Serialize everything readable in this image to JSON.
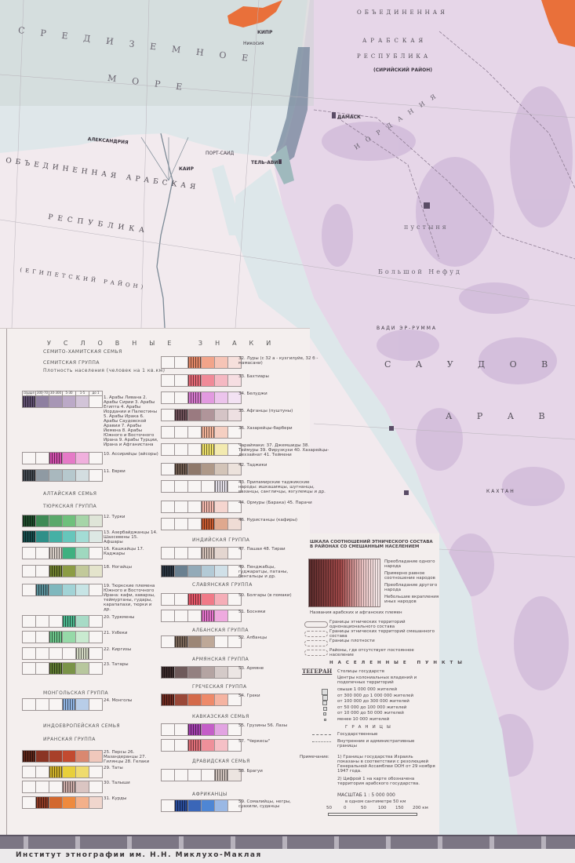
{
  "map": {
    "labels": {
      "sea1": "СРЕДИЗЕМНОЕ",
      "sea2": "МОРЕ",
      "egypt1": "ОБЪЕДИНЕННАЯ АРАБСКАЯ",
      "egypt2": "РЕСПУБЛИКА",
      "egypt3": "(ЕГИПЕТСКИЙ РАЙОН)",
      "syria1": "ОБЪЕДИНЕННАЯ",
      "syria2": "АРАБСКАЯ",
      "syria3": "РЕСПУБЛИКА",
      "syria4": "(СИРИЙСКИЙ РАЙОН)",
      "jordan": "ИОРДАНИЯ",
      "desert1": "пустыня",
      "desert2": "Большой Нефуд",
      "saudi1": "С А У Д О В",
      "saudi2": "А Р А В",
      "alexandria": "АЛЕКСАНДРИЯ",
      "cairo": "КАИР",
      "telaviv": "ТЕЛЬ-АВИВ",
      "damascus": "ДАМАСК",
      "cyprus": "КИПР",
      "nicosia": "Никосия",
      "port_said": "ПОРТ-САИД",
      "qattan": "КАХТАН",
      "nejd": "ВАДИ ЭР-РУММА"
    },
    "colors": {
      "sea": "#dfe7ea",
      "land": "#f2eaee",
      "arabia": "#e6d6e8",
      "arabia_dark": "#cfb8d8",
      "levant": "#6b7f96",
      "kurds": "#e9703a"
    }
  },
  "legend": {
    "title": "УСЛОВНЫЕ ЗНАКИ",
    "density_header": [
      "свыше 700",
      "300-700",
      "30-300",
      "5-30",
      "1-5",
      "до 1"
    ],
    "left": [
      {
        "kind": "heading",
        "text": "СЕМИТО-ХАМИТСКАЯ СЕМЬЯ"
      },
      {
        "kind": "heading",
        "text": "СЕМИТСКАЯ ГРУППА"
      },
      {
        "kind": "heading",
        "text": "Плотность населения (человек на 1 кв.км)"
      },
      {
        "kind": "row",
        "label": "1. Арабы Ливана 2. Арабы Сирии 3. Арабы Египта 4. Арабы Иордании и Палестины 5. Арабы Ирака 6. Арабы Саудовской Аравии 7. Арабы Йемена 8. Арабы Южного и Восточного Ирана 9. Арабы Турции, Ирана и Афганистана",
        "cells": [
          "#5e4e6e",
          "#8e7fa0",
          "#a796b5",
          "#bba9c7",
          "#d2c4d8",
          ""
        ]
      },
      {
        "kind": "row",
        "label": "10. Ассирийцы (айсоры)",
        "cells": [
          "",
          "",
          "#d24fae",
          "#e57ac7",
          "#f0b0dd",
          ""
        ]
      },
      {
        "kind": "row",
        "label": "11. Евреи",
        "cells": [
          "#40464e",
          "#8f9aa3",
          "#a9b8be",
          "#b6c8cd",
          "#d3dde0",
          ""
        ]
      },
      {
        "kind": "heading",
        "text": "АЛТАЙСКАЯ СЕМЬЯ"
      },
      {
        "kind": "heading",
        "text": "ТЮРКСКАЯ ГРУППА"
      },
      {
        "kind": "row",
        "label": "12. Турки",
        "cells": [
          "#1e4a2a",
          "#3e8a55",
          "#5aa86a",
          "#6fc07c",
          "#a6d5a8",
          "#dfe5d8"
        ]
      },
      {
        "kind": "row",
        "label": "13. Азербайджанцы 14. Шахсевены 15. Афшары",
        "cells": [
          "#164a4a",
          "#2f8f88",
          "#45b0a5",
          "#66c6bb",
          "#a3dcd5",
          "#dde8e4"
        ]
      },
      {
        "kind": "row",
        "label": "16. Кашкайцы 17. Каджары",
        "cells": [
          "",
          "",
          "#d9cfc8",
          "#3fb080",
          "#9fd8bf",
          ""
        ]
      },
      {
        "kind": "row",
        "label": "18. Ногайцы",
        "cells": [
          "",
          "",
          "#6f7f2e",
          "#8c9c45",
          "#c2c99a",
          "#e4e4cc"
        ]
      },
      {
        "kind": "row",
        "label": "19. Тюркские племена Южного и Восточного Ирана: кафи, хаварзы, теймуртаны, гудары, карапапахи, тюрки и др.",
        "cells": [
          "",
          "#5a8f98",
          "#7fb7bd",
          "#a2d3d6",
          "#c7e4e5",
          ""
        ]
      },
      {
        "kind": "row",
        "label": "20. Туркмены",
        "cells": [
          "",
          "",
          "",
          "#4bb48c",
          "#a7dbc6",
          ""
        ]
      },
      {
        "kind": "row",
        "label": "21. Узбеки",
        "cells": [
          "",
          "",
          "#6cc58a",
          "#96d9a8",
          "#c9ead0",
          ""
        ]
      },
      {
        "kind": "row",
        "label": "22. Киргизы",
        "cells": [
          "",
          "",
          "",
          "",
          "#d2d7c2",
          ""
        ]
      },
      {
        "kind": "row",
        "label": "23. Татары",
        "cells": [
          "",
          "",
          "#5e7a30",
          "#7a9348",
          "#b8c79e",
          ""
        ]
      },
      {
        "kind": "heading",
        "text": "МОНГОЛЬСКАЯ ГРУППА"
      },
      {
        "kind": "row",
        "label": "24. Монголы",
        "cells": [
          "",
          "",
          "",
          "#8fb2e0",
          "#b8cde8",
          ""
        ]
      },
      {
        "kind": "heading",
        "text": "ИНДОЕВРОПЕЙСКАЯ СЕМЬЯ"
      },
      {
        "kind": "heading",
        "text": "ИРАНСКАЯ ГРУППА"
      },
      {
        "kind": "row",
        "label": "25. Персы 26. Мазандеранцы 27. Гилянцы 28. Гелаки",
        "cells": [
          "#5a2418",
          "#8a3424",
          "#a8402a",
          "#c24a30",
          "#d98870",
          "#f0c8bc"
        ]
      },
      {
        "kind": "row",
        "label": "29. Таты",
        "cells": [
          "",
          "",
          "#d0b22a",
          "#e8cf3a",
          "#efdb6e",
          ""
        ]
      },
      {
        "kind": "row",
        "label": "30. Талыши",
        "cells": [
          "",
          "",
          "",
          "#c9aaa6",
          "#dac5c2",
          ""
        ]
      },
      {
        "kind": "row",
        "label": "31. Курды",
        "cells": [
          "",
          "#8c3a24",
          "#d2682e",
          "#ee8a3e",
          "#f3b08a",
          "#f0d6cd"
        ]
      }
    ],
    "right": [
      {
        "kind": "row",
        "label": "32. Луры (с 32 а - кухгилуйе, 32 б - мамасани)",
        "cells": [
          "",
          "",
          "#e48868",
          "#f2a48a",
          "#f6c4b6",
          "#f6e0dc"
        ]
      },
      {
        "kind": "row",
        "label": "33. Бахтиары",
        "cells": [
          "",
          "",
          "#e86a78",
          "#f08a98",
          "#f5b8c2",
          "#f6dee2"
        ]
      },
      {
        "kind": "row",
        "label": "34. Белуджи",
        "cells": [
          "",
          "",
          "#d87ad0",
          "#e29ae0",
          "#ecc4ec",
          "#f3e2f3"
        ]
      },
      {
        "kind": "row",
        "label": "35. Афганцы (пуштуны)",
        "cells": [
          "",
          "#6e5058",
          "#9a7a80",
          "#b0959a",
          "#d5c4c6",
          "#eee0e2"
        ]
      },
      {
        "kind": "row",
        "label": "36. Хазарейцы-барбери",
        "cells": [
          "",
          "",
          "",
          "#f3b49a",
          "#f5cfc2",
          ""
        ]
      },
      {
        "kind": "row",
        "label": "Чараймаки: 37. Джемшиды 38. Теймуры 39. Фирузкухи 40. Хазарейцы-дехзайнат 41. Теймени",
        "cells": [
          "",
          "",
          "",
          "#ede06a",
          "#f3eab0",
          ""
        ]
      },
      {
        "kind": "row",
        "label": "42. Таджики",
        "cells": [
          "",
          "#6e5a4e",
          "#8e786a",
          "#ae9888",
          "#d3c4b8",
          "#ece2dc"
        ]
      },
      {
        "kind": "row",
        "label": "43. Припамирские таджикские народы: ишкашимцы, шугнанцы, ваханцы, сангличцы, язгулемцы и др.",
        "cells": [
          "",
          "",
          "",
          "",
          "#e4dfe8",
          ""
        ]
      },
      {
        "kind": "row",
        "label": "44. Ормуры (Барака) 45. Парачи",
        "cells": [
          "",
          "",
          "",
          "#f3b8ae",
          "#f5d5cf",
          ""
        ]
      },
      {
        "kind": "row",
        "label": "46. Нуристанцы (кафиры)",
        "cells": [
          "",
          "",
          "",
          "#c65a30",
          "#dfa88e",
          "#efdcd5"
        ]
      },
      {
        "kind": "heading",
        "text": "ИНДИЙСКАЯ ГРУППА"
      },
      {
        "kind": "row",
        "label": "47. Пашаи 48. Тираи",
        "cells": [
          "",
          "",
          "",
          "#d6c3ba",
          "#e4d6d0",
          ""
        ]
      },
      {
        "kind": "row",
        "label": "49. Пенджабцы, гуджаратцы, патаны, бенгальцы и др.",
        "cells": [
          "#2a3440",
          "#6a8090",
          "#93aab8",
          "#b3cad6",
          "#d0e0e8",
          ""
        ]
      },
      {
        "kind": "heading",
        "text": "СЛАВЯНСКАЯ ГРУППА"
      },
      {
        "kind": "row",
        "label": "50. Болгары (в помаки)",
        "cells": [
          "",
          "",
          "#e8586a",
          "#f07a88",
          "#f5aeb8",
          ""
        ]
      },
      {
        "kind": "row",
        "label": "51. Босняки",
        "cells": [
          "",
          "",
          "",
          "#e474cc",
          "#eeaadf",
          ""
        ]
      },
      {
        "kind": "heading",
        "text": "АЛБАНСКАЯ ГРУППА"
      },
      {
        "kind": "row",
        "label": "52. Албанцы",
        "cells": [
          "",
          "#7a6658",
          "#9c8676",
          "#bea898",
          "",
          ""
        ]
      },
      {
        "kind": "heading",
        "text": "АРМЯНСКАЯ ГРУППА"
      },
      {
        "kind": "row",
        "label": "53. Армяне",
        "cells": [
          "#3a2a2a",
          "#6e5a5a",
          "#938080",
          "#b4a4a2",
          "#d4cac8",
          "#ece6e4"
        ]
      },
      {
        "kind": "heading",
        "text": "ГРЕЧЕСКАЯ ГРУППА"
      },
      {
        "kind": "row",
        "label": "54. Греки",
        "cells": [
          "#6e2a20",
          "#9a4838",
          "#d46a4a",
          "#ee8a6a",
          "#f5b4a2",
          ""
        ]
      },
      {
        "kind": "heading",
        "text": "КАВКАЗСКАЯ СЕМЬЯ"
      },
      {
        "kind": "row",
        "label": "55. Грузины 56. Лазы",
        "cells": [
          "",
          "",
          "#a440b0",
          "#c45ec8",
          "#e2a4e2",
          ""
        ]
      },
      {
        "kind": "row",
        "label": "57. \"Черкесы\"",
        "cells": [
          "",
          "",
          "#e2707a",
          "#ee909a",
          "#f5c0c6",
          ""
        ]
      },
      {
        "kind": "heading",
        "text": "ДРАВИДСКАЯ СЕМЬЯ"
      },
      {
        "kind": "row",
        "label": "58. Брагуи",
        "cells": [
          "",
          "",
          "",
          "",
          "#cfc2bc",
          "#ece4e0"
        ]
      },
      {
        "kind": "heading",
        "text": "АФРИКАНЦЫ"
      },
      {
        "kind": "row",
        "label": "59. Сомалийцы, негры, суахили, суданцы",
        "cells": [
          "",
          "#2a4c9a",
          "#3a66b8",
          "#4e86d4",
          "#9ab8e4",
          ""
        ]
      }
    ],
    "mixed": {
      "title": "ШКАЛА СООТНОШЕНИЙ ЭТНИЧЕСКОГО СОСТАВА В РАЙОНАХ СО СМЕШАННЫМ НАСЕЛЕНИЕМ",
      "items": [
        "Преобладание одного народа",
        "Примерно равное соотношение народов",
        "Преобладание другого народа",
        "Небольшие вкрапления иных народов"
      ],
      "tribes_note": "Названия арабских и афганских племен",
      "boundaries": [
        "Границы этнических территорий однонационального состава",
        "Границы этнических территорий смешанного состава",
        "Границы плотности",
        "Районы, где отсутствует постоянное население"
      ]
    },
    "settlements": {
      "title": "НАСЕЛЕННЫЕ ПУНКТЫ",
      "capital_example": "ТЕГЕРАН",
      "capital_label": "Столицы государств",
      "centers_label": "Центры колониальных владений и подопечных территорий",
      "sizes": [
        "свыше 1 000 000 жителей",
        "от 300 000 до 1 000 000 жителей",
        "от 100 000 до 300 000 жителей",
        "от 50 000 до 100 000 жителей",
        "от 10 000 до 50 000 жителей",
        "менее 10 000 жителей"
      ]
    },
    "borders": {
      "title": "ГРАНИЦЫ",
      "items": [
        "Государственные",
        "Внутренние и административные границы"
      ],
      "note_label": "Примечание:",
      "notes": [
        "1) Границы государства Израиль показаны в соответствии с резолюцией Генеральной Ассамблеи ООН от 29 ноября 1947 года.",
        "2) Цифрой 1 на карте обозначена территория арабского государства."
      ]
    },
    "scale": {
      "title": "МАСШТАБ 1 : 5 000 000",
      "subtitle": "в одном сантиметре 50 км",
      "ticks": [
        "50",
        "0",
        "50",
        "100",
        "150",
        "200 км"
      ]
    }
  },
  "footer": {
    "text": "Институт этнографии им. Н.Н. Миклухо-Маклая"
  }
}
